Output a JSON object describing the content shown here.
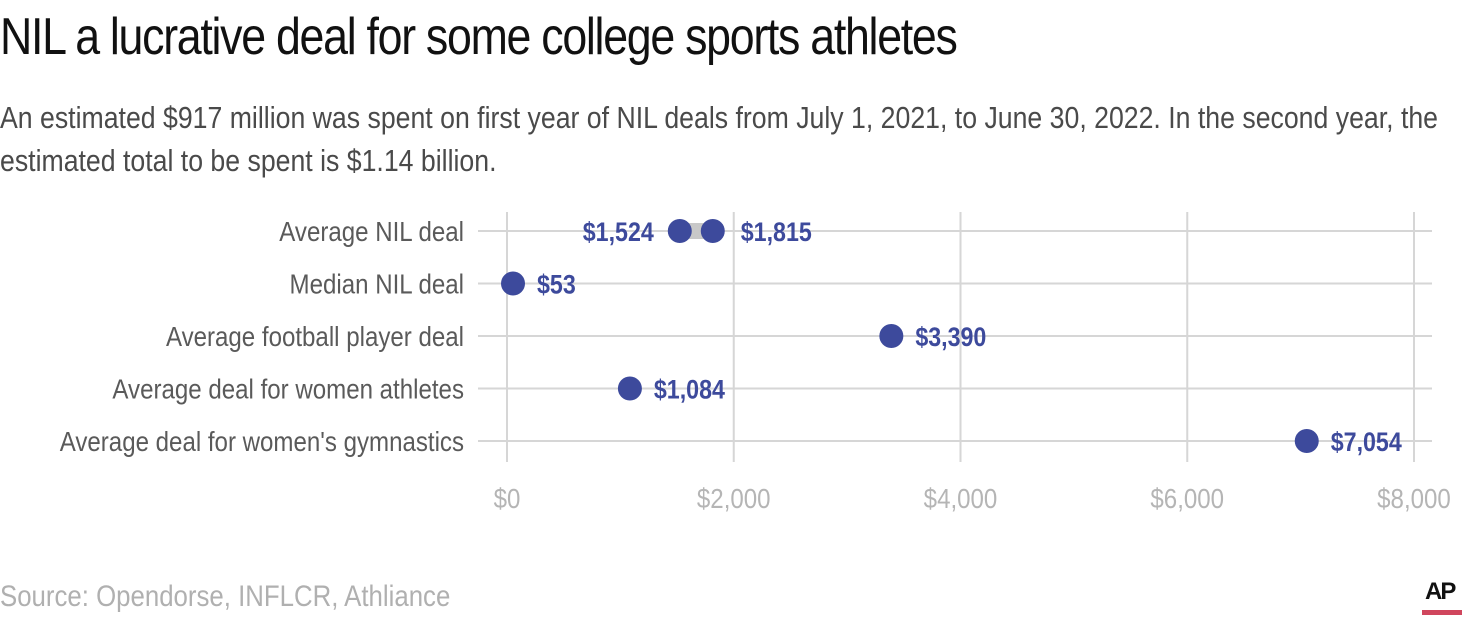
{
  "header": {
    "title": "NIL a lucrative deal for some college sports athletes",
    "subtitle": "An estimated $917 million was spent on first year of NIL deals from July 1, 2021, to June 30, 2022. In the second year, the estimated total to be spent is $1.14 billion."
  },
  "footer": {
    "source": "Source: Opendorse, INFLCR, Athliance",
    "logo": "AP",
    "logo_accent_color": "#d0465d"
  },
  "colors": {
    "dot": "#3d4a9c",
    "range_bar": "#c8c8c8",
    "grid": "#d6d6d6",
    "category_text": "#5a5a5a",
    "tick_text": "#b5b5b5"
  },
  "chart_data": {
    "type": "scatter",
    "subtype": "dot_plot",
    "title": "NIL a lucrative deal for some college sports athletes",
    "subtitle": "An estimated $917 million was spent on first year of NIL deals from July 1, 2021, to June 30, 2022. In the second year, the estimated total to be spent is $1.14 billion.",
    "xlabel": "",
    "ylabel": "",
    "xlim": [
      0,
      8000
    ],
    "x_ticks": [
      0,
      2000,
      4000,
      6000,
      8000
    ],
    "x_tick_labels": [
      "$0",
      "$2,000",
      "$4,000",
      "$6,000",
      "$8,000"
    ],
    "grid": true,
    "legend": null,
    "categories": [
      "Average NIL deal",
      "Median NIL deal",
      "Average football player deal",
      "Average deal for women athletes",
      "Average deal for women's gymnastics"
    ],
    "rows": [
      {
        "category": "Average NIL deal",
        "values": [
          1524,
          1815
        ],
        "labels": [
          "$1,524",
          "$1,815"
        ],
        "range": true
      },
      {
        "category": "Median NIL deal",
        "values": [
          53
        ],
        "labels": [
          "$53"
        ]
      },
      {
        "category": "Average football player deal",
        "values": [
          3390
        ],
        "labels": [
          "$3,390"
        ]
      },
      {
        "category": "Average deal for women athletes",
        "values": [
          1084
        ],
        "labels": [
          "$1,084"
        ]
      },
      {
        "category": "Average deal for women's gymnastics",
        "values": [
          7054
        ],
        "labels": [
          "$7,054"
        ]
      }
    ],
    "source": "Source: Opendorse, INFLCR, Athliance"
  }
}
